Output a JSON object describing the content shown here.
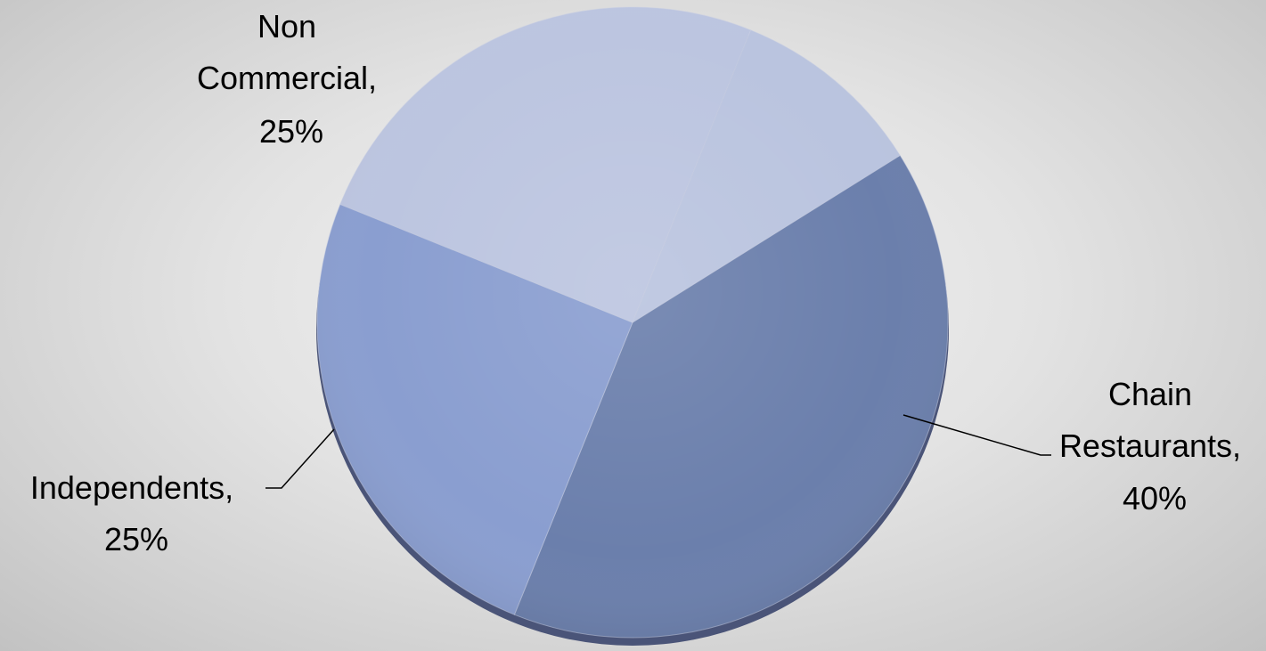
{
  "chart_data": {
    "type": "pie",
    "title": "",
    "slices": [
      {
        "label": "Chain Restaurants",
        "value": 40,
        "value_label": "40%",
        "color": "#6b7fac"
      },
      {
        "label": "Independents",
        "value": 25,
        "value_label": "25%",
        "color": "#8a9ed0"
      },
      {
        "label": "Non Commercial",
        "value": 25,
        "value_label": "25%",
        "color": "#bcc5e0"
      },
      {
        "label": "",
        "value": 10,
        "value_label": "",
        "color": "#bac4df"
      }
    ],
    "labels": {
      "chain": {
        "lines": [
          "Chain",
          "Restaurants,",
          "40%"
        ]
      },
      "independents": {
        "lines": [
          "Independents,",
          "25%"
        ]
      },
      "noncommercial": {
        "lines": [
          "Non",
          "Commercial,",
          "25%"
        ]
      }
    },
    "legend": "none"
  }
}
